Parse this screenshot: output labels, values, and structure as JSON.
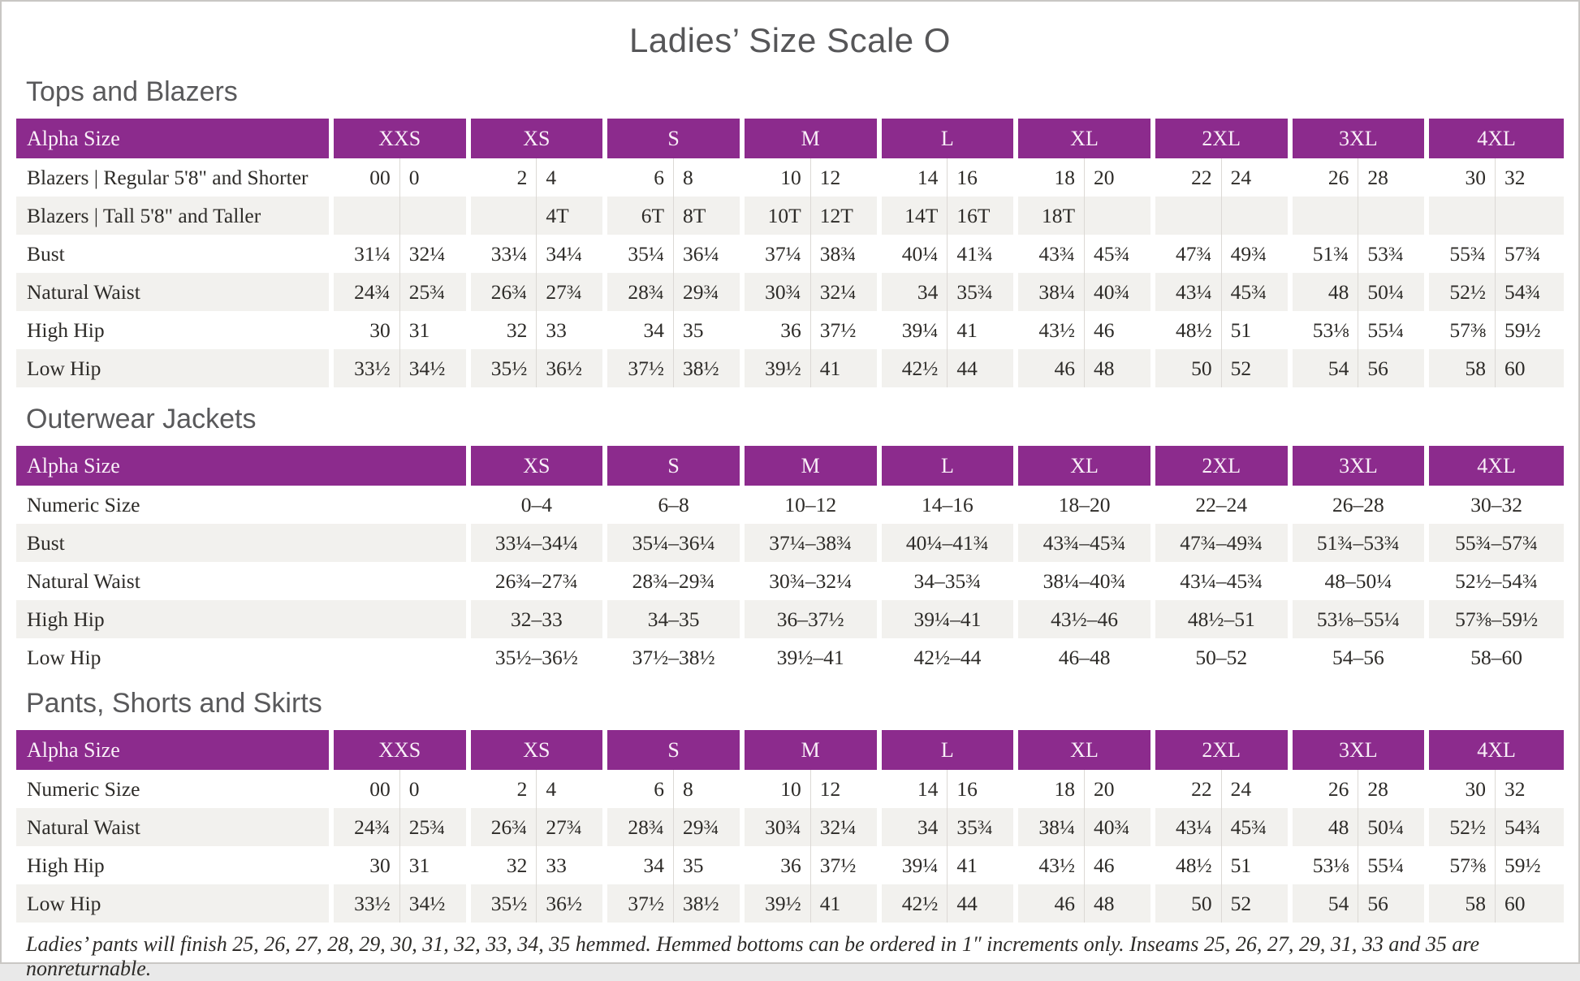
{
  "page": {
    "title": "Ladies’ Size Scale O",
    "footnote": "Ladies’ pants will finish 25, 26, 27, 28, 29, 30, 31, 32, 33, 34, 35 hemmed. Hemmed bottoms can be ordered in 1″ increments only. Inseams 25, 26, 27, 29, 31, 33 and 35 are nonreturnable."
  },
  "colors": {
    "header_purple": "#8c2b8d",
    "header_text": "#f9eff8",
    "stripe_gray": "#f2f1ee",
    "cell_text": "#2d2b28",
    "heading_gray": "#59595b"
  },
  "tables": [
    {
      "id": "tops-and-blazers",
      "section_title": "Tops and Blazers",
      "header_label": "Alpha Size",
      "paired": true,
      "columns": [
        "XXS",
        "XS",
        "S",
        "M",
        "L",
        "XL",
        "2XL",
        "3XL",
        "4XL"
      ],
      "rows": [
        {
          "label": "Blazers | Regular 5'8\" and Shorter",
          "values": [
            [
              "00",
              "0"
            ],
            [
              "2",
              "4"
            ],
            [
              "6",
              "8"
            ],
            [
              "10",
              "12"
            ],
            [
              "14",
              "16"
            ],
            [
              "18",
              "20"
            ],
            [
              "22",
              "24"
            ],
            [
              "26",
              "28"
            ],
            [
              "30",
              "32"
            ]
          ]
        },
        {
          "label": "Blazers | Tall 5'8\" and Taller",
          "values": [
            [
              "",
              ""
            ],
            [
              "",
              "4T"
            ],
            [
              "6T",
              "8T"
            ],
            [
              "10T",
              "12T"
            ],
            [
              "14T",
              "16T"
            ],
            [
              "18T",
              ""
            ],
            [
              "",
              ""
            ],
            [
              "",
              ""
            ],
            [
              "",
              ""
            ]
          ]
        },
        {
          "label": "Bust",
          "values": [
            [
              "31¼",
              "32¼"
            ],
            [
              "33¼",
              "34¼"
            ],
            [
              "35¼",
              "36¼"
            ],
            [
              "37¼",
              "38¾"
            ],
            [
              "40¼",
              "41¾"
            ],
            [
              "43¾",
              "45¾"
            ],
            [
              "47¾",
              "49¾"
            ],
            [
              "51¾",
              "53¾"
            ],
            [
              "55¾",
              "57¾"
            ]
          ]
        },
        {
          "label": "Natural Waist",
          "values": [
            [
              "24¾",
              "25¾"
            ],
            [
              "26¾",
              "27¾"
            ],
            [
              "28¾",
              "29¾"
            ],
            [
              "30¾",
              "32¼"
            ],
            [
              "34",
              "35¾"
            ],
            [
              "38¼",
              "40¾"
            ],
            [
              "43¼",
              "45¾"
            ],
            [
              "48",
              "50¼"
            ],
            [
              "52½",
              "54¾"
            ]
          ]
        },
        {
          "label": "High Hip",
          "values": [
            [
              "30",
              "31"
            ],
            [
              "32",
              "33"
            ],
            [
              "34",
              "35"
            ],
            [
              "36",
              "37½"
            ],
            [
              "39¼",
              "41"
            ],
            [
              "43½",
              "46"
            ],
            [
              "48½",
              "51"
            ],
            [
              "53⅛",
              "55¼"
            ],
            [
              "57⅜",
              "59½"
            ]
          ]
        },
        {
          "label": "Low Hip",
          "values": [
            [
              "33½",
              "34½"
            ],
            [
              "35½",
              "36½"
            ],
            [
              "37½",
              "38½"
            ],
            [
              "39½",
              "41"
            ],
            [
              "42½",
              "44"
            ],
            [
              "46",
              "48"
            ],
            [
              "50",
              "52"
            ],
            [
              "54",
              "56"
            ],
            [
              "58",
              "60"
            ]
          ]
        }
      ]
    },
    {
      "id": "outerwear-jackets",
      "section_title": "Outerwear Jackets",
      "header_label": "Alpha Size",
      "paired": false,
      "columns": [
        "XS",
        "S",
        "M",
        "L",
        "XL",
        "2XL",
        "3XL",
        "4XL"
      ],
      "rows": [
        {
          "label": "Numeric Size",
          "values": [
            "0–4",
            "6–8",
            "10–12",
            "14–16",
            "18–20",
            "22–24",
            "26–28",
            "30–32"
          ]
        },
        {
          "label": "Bust",
          "values": [
            "33¼–34¼",
            "35¼–36¼",
            "37¼–38¾",
            "40¼–41¾",
            "43¾–45¾",
            "47¾–49¾",
            "51¾–53¾",
            "55¾–57¾"
          ]
        },
        {
          "label": "Natural Waist",
          "values": [
            "26¾–27¾",
            "28¾–29¾",
            "30¾–32¼",
            "34–35¾",
            "38¼–40¾",
            "43¼–45¾",
            "48–50¼",
            "52½–54¾"
          ]
        },
        {
          "label": "High Hip",
          "values": [
            "32–33",
            "34–35",
            "36–37½",
            "39¼–41",
            "43½–46",
            "48½–51",
            "53⅛–55¼",
            "57⅜–59½"
          ]
        },
        {
          "label": "Low Hip",
          "values": [
            "35½–36½",
            "37½–38½",
            "39½–41",
            "42½–44",
            "46–48",
            "50–52",
            "54–56",
            "58–60"
          ]
        }
      ]
    },
    {
      "id": "pants-shorts-skirts",
      "section_title": "Pants, Shorts and Skirts",
      "header_label": "Alpha Size",
      "paired": true,
      "columns": [
        "XXS",
        "XS",
        "S",
        "M",
        "L",
        "XL",
        "2XL",
        "3XL",
        "4XL"
      ],
      "rows": [
        {
          "label": "Numeric Size",
          "values": [
            [
              "00",
              "0"
            ],
            [
              "2",
              "4"
            ],
            [
              "6",
              "8"
            ],
            [
              "10",
              "12"
            ],
            [
              "14",
              "16"
            ],
            [
              "18",
              "20"
            ],
            [
              "22",
              "24"
            ],
            [
              "26",
              "28"
            ],
            [
              "30",
              "32"
            ]
          ]
        },
        {
          "label": "Natural Waist",
          "values": [
            [
              "24¾",
              "25¾"
            ],
            [
              "26¾",
              "27¾"
            ],
            [
              "28¾",
              "29¾"
            ],
            [
              "30¾",
              "32¼"
            ],
            [
              "34",
              "35¾"
            ],
            [
              "38¼",
              "40¾"
            ],
            [
              "43¼",
              "45¾"
            ],
            [
              "48",
              "50¼"
            ],
            [
              "52½",
              "54¾"
            ]
          ]
        },
        {
          "label": "High Hip",
          "values": [
            [
              "30",
              "31"
            ],
            [
              "32",
              "33"
            ],
            [
              "34",
              "35"
            ],
            [
              "36",
              "37½"
            ],
            [
              "39¼",
              "41"
            ],
            [
              "43½",
              "46"
            ],
            [
              "48½",
              "51"
            ],
            [
              "53⅛",
              "55¼"
            ],
            [
              "57⅜",
              "59½"
            ]
          ]
        },
        {
          "label": "Low Hip",
          "values": [
            [
              "33½",
              "34½"
            ],
            [
              "35½",
              "36½"
            ],
            [
              "37½",
              "38½"
            ],
            [
              "39½",
              "41"
            ],
            [
              "42½",
              "44"
            ],
            [
              "46",
              "48"
            ],
            [
              "50",
              "52"
            ],
            [
              "54",
              "56"
            ],
            [
              "58",
              "60"
            ]
          ]
        }
      ]
    }
  ]
}
